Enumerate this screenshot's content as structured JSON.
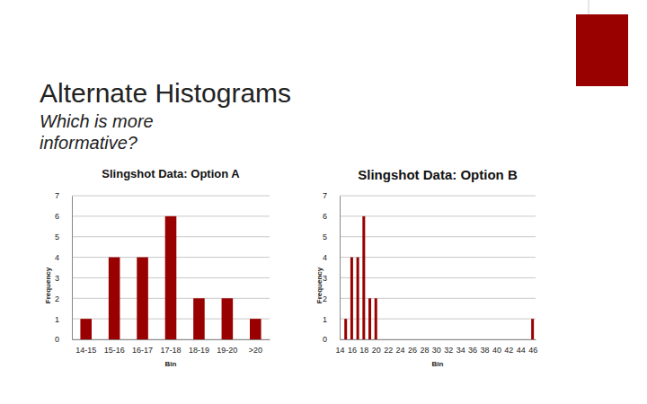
{
  "header": {
    "title": "Alternate Histograms",
    "subtitle": "Which is more informative?"
  },
  "chart_data": [
    {
      "type": "bar",
      "title": "Slingshot Data: Option A",
      "x_label": "Bin",
      "y_label": "Frequency",
      "categories": [
        "14-15",
        "15-16",
        "16-17",
        "17-18",
        "18-19",
        "19-20",
        ">20"
      ],
      "values": [
        1,
        4,
        4,
        6,
        2,
        2,
        1
      ],
      "color": "#990000",
      "ylim": [
        0,
        7
      ],
      "yticks": [
        0,
        1,
        2,
        3,
        4,
        5,
        6,
        7
      ],
      "grid": true
    },
    {
      "type": "bar",
      "title": "Slingshot Data: Option B",
      "x_label": "Bin",
      "y_label": "Frequency",
      "x": [
        15,
        16,
        17,
        18,
        19,
        20,
        46
      ],
      "values": [
        1,
        4,
        4,
        6,
        2,
        2,
        1
      ],
      "color": "#990000",
      "xlim": [
        14,
        46.5
      ],
      "xticks": [
        14,
        16,
        18,
        20,
        22,
        24,
        26,
        28,
        30,
        32,
        34,
        36,
        38,
        40,
        42,
        44,
        46
      ],
      "ylim": [
        0,
        7
      ],
      "yticks": [
        0,
        1,
        2,
        3,
        4,
        5,
        6,
        7
      ],
      "grid": true
    }
  ]
}
